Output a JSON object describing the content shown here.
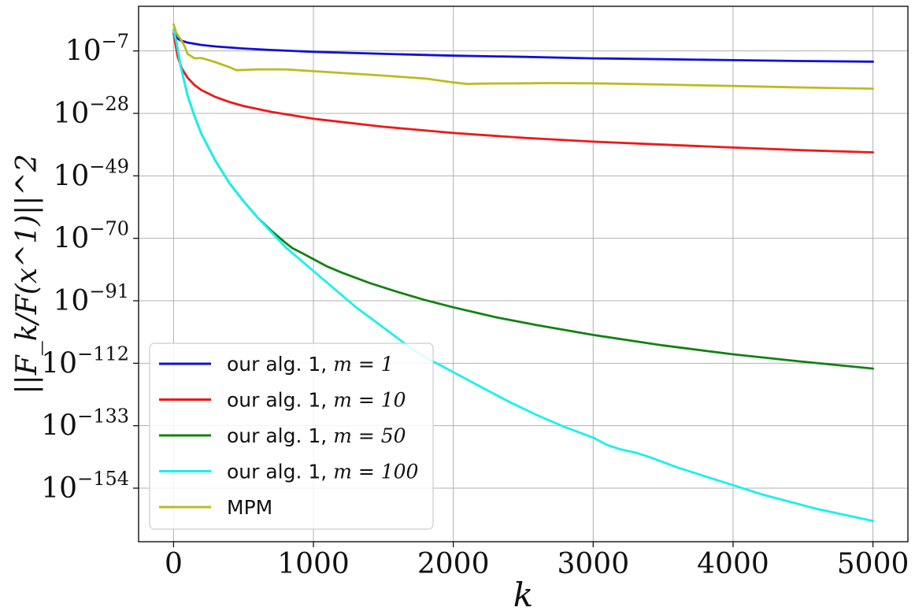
{
  "chart_data": {
    "type": "line",
    "xlabel": "k",
    "ylabel": "||F_k/F(x^1)||^2",
    "yscale": "log",
    "xlim": [
      -250,
      5250
    ],
    "ylim_exp": [
      -172,
      8
    ],
    "x_ticks": [
      0,
      1000,
      2000,
      3000,
      4000,
      5000
    ],
    "x_tick_labels": [
      "0",
      "1000",
      "2000",
      "3000",
      "4000",
      "5000"
    ],
    "y_ticks_exp": [
      -7,
      -28,
      -49,
      -70,
      -91,
      -112,
      -133,
      -154
    ],
    "y_tick_labels": [
      "10^-7",
      "10^-28",
      "10^-49",
      "10^-70",
      "10^-91",
      "10^-112",
      "10^-133",
      "10^-154"
    ],
    "grid": true,
    "legend_position": "lower-left",
    "series": [
      {
        "name": "our alg. 1, m = 1",
        "legend_prefix": "our alg. 1, ",
        "legend_math": "m = 1",
        "color": "#1010d8",
        "x": [
          0,
          20,
          50,
          100,
          200,
          300,
          500,
          700,
          1000,
          1500,
          2000,
          2500,
          3000,
          3500,
          4000,
          4500,
          5000
        ],
        "y_exp": [
          0,
          -2.5,
          -3.5,
          -4.2,
          -5.0,
          -5.5,
          -6.2,
          -6.7,
          -7.3,
          -8.0,
          -8.6,
          -9.0,
          -9.5,
          -9.8,
          -10.1,
          -10.4,
          -10.6
        ]
      },
      {
        "name": "our alg. 1, m = 10",
        "legend_prefix": "our alg. 1, ",
        "legend_math": "m = 10",
        "color": "#ee1818",
        "x": [
          0,
          30,
          60,
          100,
          150,
          200,
          300,
          400,
          500,
          700,
          1000,
          1500,
          2000,
          2500,
          3000,
          3500,
          4000,
          4500,
          5000
        ],
        "y_exp": [
          -1,
          -9,
          -13,
          -16,
          -18.5,
          -20.2,
          -22.5,
          -24.2,
          -25.5,
          -27.5,
          -29.8,
          -32.5,
          -34.6,
          -36.2,
          -37.5,
          -38.5,
          -39.5,
          -40.4,
          -41.1
        ]
      },
      {
        "name": "our alg. 1, m = 50",
        "legend_prefix": "our alg. 1, ",
        "legend_math": "m = 50",
        "color": "#128212",
        "x": [
          0,
          20,
          50,
          100,
          150,
          200,
          300,
          400,
          500,
          600,
          700,
          800,
          850,
          900,
          1000,
          1100,
          1200,
          1400,
          1600,
          1800,
          2000,
          2300,
          2600,
          3000,
          3500,
          4000,
          4500,
          5000
        ],
        "y_exp": [
          0,
          -4,
          -12,
          -22,
          -29,
          -35,
          -44,
          -51.5,
          -57.5,
          -63,
          -67.5,
          -71.5,
          -73.3,
          -74.5,
          -77,
          -79.5,
          -81.5,
          -85,
          -88,
          -90.8,
          -93.2,
          -96.5,
          -99.2,
          -102.5,
          -106,
          -109,
          -111.5,
          -113.8
        ]
      },
      {
        "name": "our alg. 1, m = 100",
        "legend_prefix": "our alg. 1, ",
        "legend_math": "m = 100",
        "color": "#19f0f0",
        "x": [
          0,
          20,
          50,
          100,
          150,
          200,
          300,
          400,
          500,
          600,
          700,
          800,
          900,
          1000,
          1100,
          1200,
          1300,
          1400,
          1500,
          1600,
          1700,
          1800,
          1900,
          2000,
          2200,
          2400,
          2600,
          2800,
          3000,
          3100,
          3200,
          3300,
          3400,
          3600,
          3800,
          4000,
          4200,
          4400,
          4600,
          4800,
          5000
        ],
        "y_exp": [
          0,
          -4,
          -12,
          -22,
          -29,
          -35,
          -44,
          -51.5,
          -57.5,
          -63,
          -68,
          -73,
          -77,
          -81,
          -85,
          -89,
          -93,
          -96.5,
          -100,
          -103.5,
          -107,
          -110,
          -112.5,
          -115,
          -120,
          -125,
          -129.5,
          -133.5,
          -137,
          -139.5,
          -141,
          -142,
          -143.5,
          -147,
          -150,
          -153,
          -156,
          -158.5,
          -161,
          -163,
          -165
        ]
      },
      {
        "name": "MPM",
        "legend_prefix": "MPM",
        "legend_math": "",
        "color": "#bcbc1e",
        "x": [
          0,
          20,
          50,
          80,
          100,
          150,
          200,
          300,
          400,
          450,
          500,
          600,
          800,
          1000,
          1200,
          1500,
          1800,
          2000,
          2100,
          2200,
          2500,
          2700,
          3000,
          3500,
          4000,
          4500,
          5000
        ],
        "y_exp": [
          2,
          -1,
          -3,
          -5.5,
          -8,
          -9.5,
          -9.4,
          -10.8,
          -12.5,
          -13.5,
          -13.4,
          -13.2,
          -13.2,
          -13.8,
          -14.4,
          -15.3,
          -16.3,
          -17.6,
          -18.1,
          -18.0,
          -17.9,
          -17.8,
          -17.9,
          -18.3,
          -18.8,
          -19.3,
          -19.7
        ]
      }
    ]
  }
}
